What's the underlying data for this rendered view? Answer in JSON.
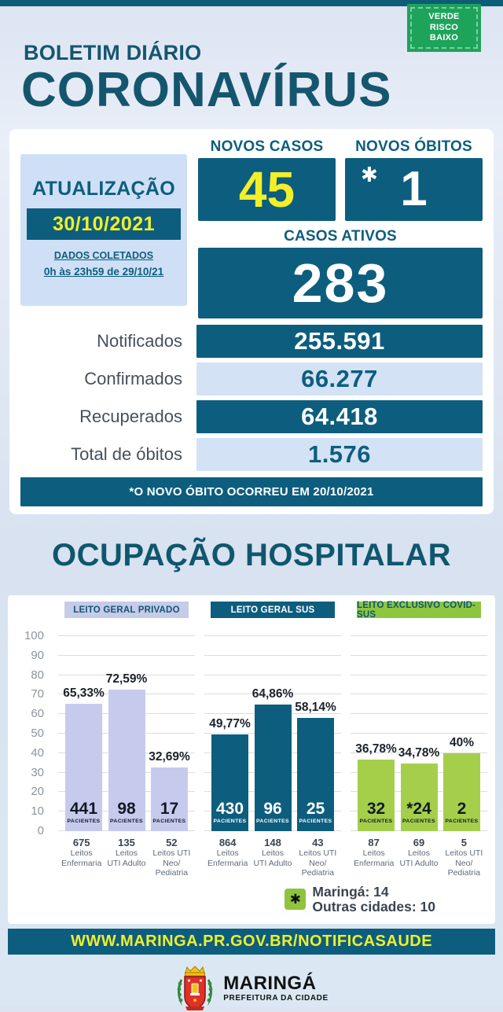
{
  "colors": {
    "accent_teal": "#0d5e7e",
    "title_teal": "#15566f",
    "accent_yellow": "#f2ef2a",
    "badge_green": "#1ea35b",
    "lavender": "#c6cbee",
    "bar_green": "#a5cf4b",
    "light_blue": "#cfe0f6"
  },
  "header": {
    "risk_badge": {
      "lines": [
        "VERDE",
        "RISCO",
        "BAIXO"
      ]
    },
    "subtitle": "BOLETIM DIÁRIO",
    "title": "CORONAVÍRUS"
  },
  "update_panel": {
    "label": "ATUALIZAÇÃO",
    "date": "30/10/2021",
    "collected_label": "DADOS COLETADOS",
    "collected_period": "0h às 23h59 de 29/10/21"
  },
  "stats": {
    "novos_casos": {
      "label": "NOVOS CASOS",
      "value": "45"
    },
    "novos_obitos": {
      "label": "NOVOS ÓBITOS",
      "asterisk": "✱",
      "value": "1"
    },
    "casos_ativos": {
      "label": "CASOS ATIVOS",
      "value": "283"
    },
    "rows": [
      {
        "label": "Notificados",
        "value": "255.591"
      },
      {
        "label": "Confirmados",
        "value": "66.277"
      },
      {
        "label": "Recuperados",
        "value": "64.418"
      },
      {
        "label": "Total de óbitos",
        "value": "1.576"
      }
    ],
    "note": "*O NOVO ÓBITO OCORREU EM 20/10/2021"
  },
  "hospital_section_title": "OCUPAÇÃO HOSPITALAR",
  "chart_data": {
    "type": "bar",
    "title": "OCUPAÇÃO HOSPITALAR",
    "ylabel": "",
    "xlabel": "",
    "ylim": [
      0,
      100
    ],
    "yticks": [
      0,
      10,
      20,
      30,
      40,
      50,
      60,
      70,
      80,
      90,
      100
    ],
    "grid": true,
    "patients_word": "PACIENTES",
    "groups": [
      {
        "label": "LEITO GERAL PRIVADO",
        "colors": {
          "header_bg": "#c6cbea",
          "header_text": "#11576f",
          "bar": "#c6cbee",
          "bar_text": "#131a24"
        },
        "bars": [
          {
            "category": "Leitos Enfermaria",
            "occupancy_pct": 65.33,
            "pct_label": "65,33%",
            "patients_label": "441",
            "total_beds_label": "675",
            "caption_lines": [
              "Leitos",
              "Enfermaria"
            ]
          },
          {
            "category": "Leitos UTI Adulto",
            "occupancy_pct": 72.59,
            "pct_label": "72,59%",
            "patients_label": "98",
            "total_beds_label": "135",
            "caption_lines": [
              "Leitos",
              "UTI Adulto"
            ]
          },
          {
            "category": "Leitos UTI Neo/Pediatria",
            "occupancy_pct": 32.69,
            "pct_label": "32,69%",
            "patients_label": "17",
            "total_beds_label": "52",
            "caption_lines": [
              "Leitos UTI",
              "Neo/",
              "Pediatria"
            ]
          }
        ]
      },
      {
        "label": "LEITO GERAL SUS",
        "colors": {
          "header_bg": "#0d5e7e",
          "header_text": "#ffffff",
          "bar": "#0d5e7e",
          "bar_text": "#ffffff"
        },
        "bars": [
          {
            "category": "Leitos Enfermaria",
            "occupancy_pct": 49.77,
            "pct_label": "49,77%",
            "patients_label": "430",
            "total_beds_label": "864",
            "caption_lines": [
              "Leitos",
              "Enfermaria"
            ]
          },
          {
            "category": "Leitos UTI Adulto",
            "occupancy_pct": 64.86,
            "pct_label": "64,86%",
            "patients_label": "96",
            "total_beds_label": "148",
            "caption_lines": [
              "Leitos",
              "UTI Adulto"
            ]
          },
          {
            "category": "Leitos UTI Neo/Pediatria",
            "occupancy_pct": 58.14,
            "pct_label": "58,14%",
            "patients_label": "25",
            "total_beds_label": "43",
            "caption_lines": [
              "Leitos UTI",
              "Neo/",
              "Pediatria"
            ]
          }
        ]
      },
      {
        "label": "LEITO EXCLUSIVO COVID-SUS",
        "colors": {
          "header_bg": "#8cc63f",
          "header_text": "#11576f",
          "bar": "#a5cf4b",
          "bar_text": "#131a24"
        },
        "bars": [
          {
            "category": "Leitos Enfermaria",
            "occupancy_pct": 36.78,
            "pct_label": "36,78%",
            "patients_label": "32",
            "total_beds_label": "87",
            "caption_lines": [
              "Leitos",
              "Enfermaria"
            ]
          },
          {
            "category": "Leitos UTI Adulto",
            "occupancy_pct": 34.78,
            "pct_label": "34,78%",
            "patients_label": "*24",
            "total_beds_label": "69",
            "caption_lines": [
              "Leitos",
              "UTI Adulto"
            ]
          },
          {
            "category": "Leitos UTI Neo/Pediatria",
            "occupancy_pct": 40,
            "pct_label": "40%",
            "patients_label": "2",
            "total_beds_label": "5",
            "caption_lines": [
              "Leitos UTI",
              "Neo/",
              "Pediatria"
            ]
          }
        ]
      }
    ]
  },
  "legend": {
    "marker": "✱",
    "lines": [
      "Maringá: 14",
      "Outras cidades: 10"
    ]
  },
  "footer": {
    "url": "WWW.MARINGA.PR.GOV.BR/NOTIFICASAUDE",
    "org": "MARINGÁ",
    "org_sub": "PREFEITURA DA CIDADE"
  }
}
